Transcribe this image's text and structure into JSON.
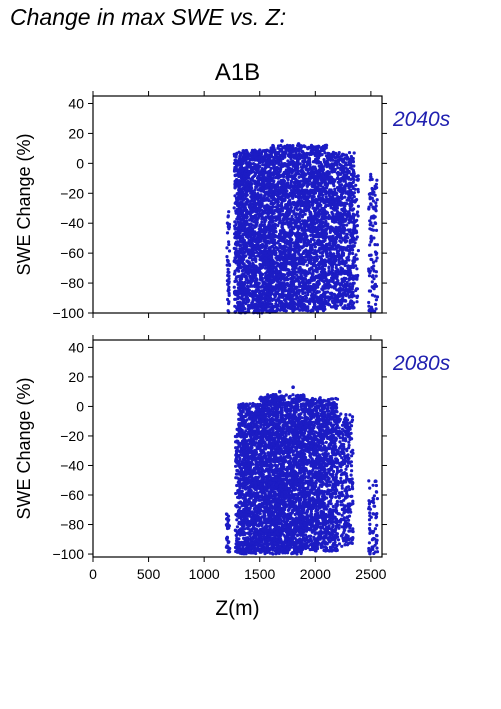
{
  "page_title": "Change in max SWE vs. Z:",
  "chart_data": [
    {
      "type": "scatter",
      "title": "A1B",
      "period_label": "2040s",
      "xlabel": "",
      "ylabel": "SWE Change (%)",
      "xlim": [
        0,
        2600
      ],
      "ylim": [
        -100,
        45
      ],
      "xticks": [
        0,
        500,
        1000,
        1500,
        2000,
        2500
      ],
      "yticks": [
        -100,
        -80,
        -60,
        -40,
        -20,
        0,
        20,
        40
      ],
      "show_xtick_labels": false,
      "grid": false,
      "color": "#1c1cc4",
      "clusters": [
        {
          "x_range": [
            1205,
            1230
          ],
          "y_range": [
            -100,
            -32
          ],
          "count": 45
        },
        {
          "x_range": [
            1270,
            1300
          ],
          "y_range": [
            -100,
            7
          ],
          "count": 120
        },
        {
          "x_range": [
            1300,
            1600
          ],
          "y_range": [
            -100,
            9
          ],
          "count": 1800
        },
        {
          "x_range": [
            1600,
            2100
          ],
          "y_range": [
            -99,
            12
          ],
          "count": 2600
        },
        {
          "x_range": [
            2100,
            2350
          ],
          "y_range": [
            -97,
            8
          ],
          "count": 1000
        },
        {
          "x_range": [
            2350,
            2390
          ],
          "y_range": [
            -95,
            -5
          ],
          "count": 60
        },
        {
          "x_range": [
            2480,
            2560
          ],
          "y_range": [
            -100,
            -5
          ],
          "count": 110
        }
      ],
      "points": [
        [
          1700,
          15
        ],
        [
          1850,
          13
        ],
        [
          2100,
          12
        ],
        [
          1980,
          11
        ]
      ]
    },
    {
      "type": "scatter",
      "title": "",
      "period_label": "2080s",
      "xlabel": "Z(m)",
      "ylabel": "SWE Change (%)",
      "xlim": [
        0,
        2600
      ],
      "ylim": [
        -102,
        45
      ],
      "xticks": [
        0,
        500,
        1000,
        1500,
        2000,
        2500
      ],
      "yticks": [
        -100,
        -80,
        -60,
        -40,
        -20,
        0,
        20,
        40
      ],
      "show_xtick_labels": true,
      "grid": false,
      "color": "#1c1cc4",
      "clusters": [
        {
          "x_range": [
            1200,
            1230
          ],
          "y_range": [
            -100,
            -72
          ],
          "count": 35
        },
        {
          "x_range": [
            1280,
            1310
          ],
          "y_range": [
            -100,
            -15
          ],
          "count": 80
        },
        {
          "x_range": [
            1310,
            1500
          ],
          "y_range": [
            -100,
            2
          ],
          "count": 1100
        },
        {
          "x_range": [
            1500,
            1900
          ],
          "y_range": [
            -100,
            8
          ],
          "count": 2600
        },
        {
          "x_range": [
            1900,
            2200
          ],
          "y_range": [
            -98,
            6
          ],
          "count": 1400
        },
        {
          "x_range": [
            2200,
            2340
          ],
          "y_range": [
            -95,
            -5
          ],
          "count": 300
        },
        {
          "x_range": [
            2480,
            2560
          ],
          "y_range": [
            -100,
            -50
          ],
          "count": 70
        }
      ],
      "points": [
        [
          1800,
          13
        ],
        [
          2050,
          4
        ],
        [
          1680,
          10
        ],
        [
          1870,
          7
        ]
      ]
    }
  ]
}
